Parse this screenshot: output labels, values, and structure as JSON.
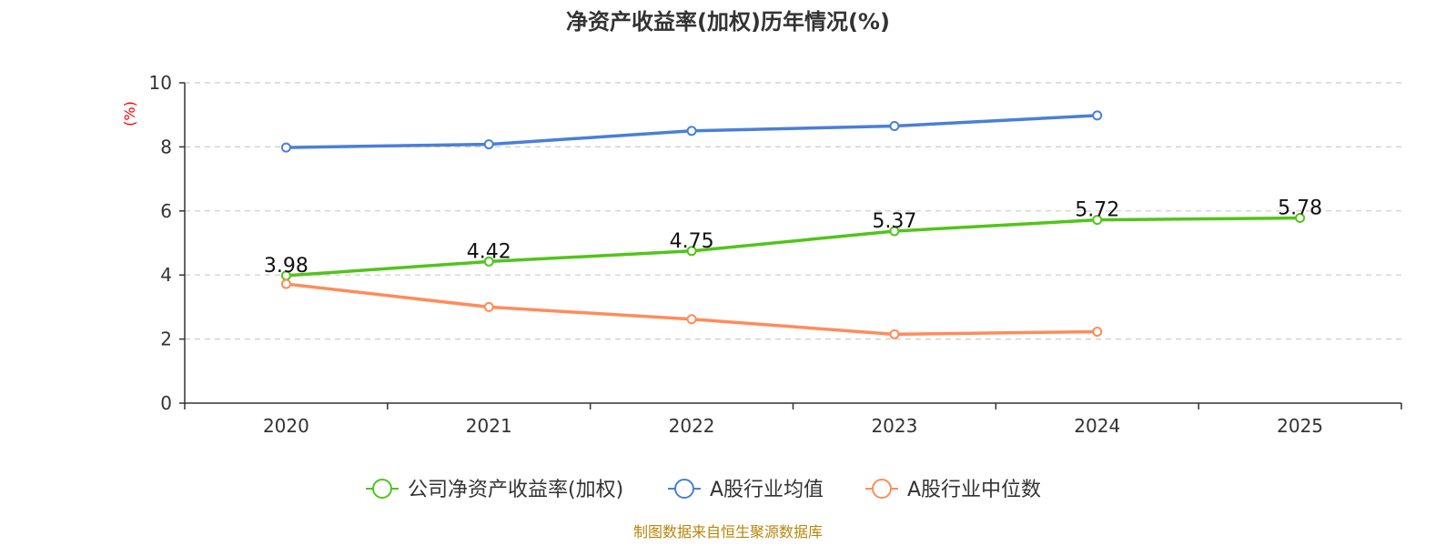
{
  "chart_data": {
    "type": "line",
    "title": "净资产收益率(加权)历年情况(%)",
    "xlabel": "",
    "ylabel": "(%)",
    "categories": [
      "2020",
      "2021",
      "2022",
      "2023",
      "2024",
      "2025"
    ],
    "ylim": [
      0,
      10
    ],
    "yticks": [
      "0",
      "2",
      "4",
      "6",
      "8",
      "10"
    ],
    "grid": true,
    "legend_position": "bottom-center",
    "series": [
      {
        "name": "公司净资产收益率(加权)",
        "color": "#52c41a",
        "values": [
          3.98,
          4.42,
          4.75,
          5.37,
          5.72,
          5.78
        ],
        "labels": [
          "3.98",
          "4.42",
          "4.75",
          "5.37",
          "5.72",
          "5.78"
        ]
      },
      {
        "name": "A股行业均值",
        "color": "#4a7fd9",
        "values": [
          7.98,
          8.08,
          8.5,
          8.65,
          8.98,
          null
        ]
      },
      {
        "name": "A股行业中位数",
        "color": "#ff8c5a",
        "values": [
          3.72,
          3.0,
          2.62,
          2.15,
          2.23,
          null
        ]
      }
    ],
    "ylabel_color": "#ff0000"
  },
  "source": {
    "text": "制图数据来自恒生聚源数据库",
    "color": "#b8860b"
  }
}
